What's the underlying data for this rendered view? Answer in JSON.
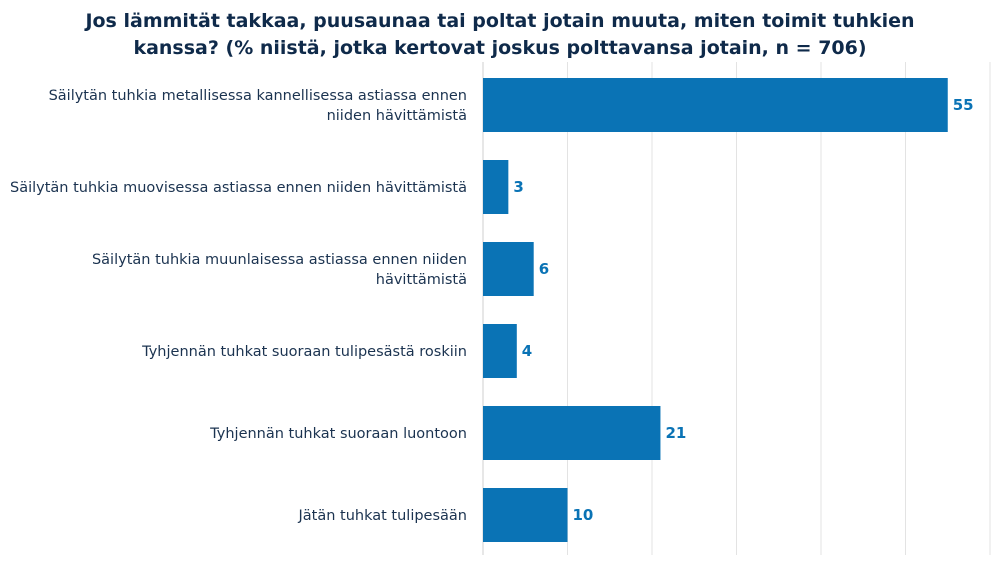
{
  "chart_data": {
    "type": "bar",
    "orientation": "horizontal",
    "title": "Jos lämmität takkaa, puusaunaa tai poltat jotain muuta, miten toimit tuhkien kanssa? (% niistä, jotka kertovat joskus polttavansa jotain, n = 706)",
    "categories": [
      "Säilytän tuhkia metallisessa kannellisessa astiassa ennen niiden hävittämistä",
      "Säilytän tuhkia muovisessa astiassa ennen niiden hävittämistä",
      "Säilytän tuhkia muunlaisessa astiassa ennen niiden hävittämistä",
      "Tyhjennän tuhkat suoraan tulipesästä roskiin",
      "Tyhjennän tuhkat suoraan luontoon",
      "Jätän tuhkat tulipesään"
    ],
    "values": [
      55,
      3,
      6,
      4,
      21,
      10
    ],
    "xlim": [
      0,
      60
    ],
    "grid": true,
    "legend": "none",
    "bar_color": "#0a73b5",
    "label_color": "#0a73b5"
  }
}
